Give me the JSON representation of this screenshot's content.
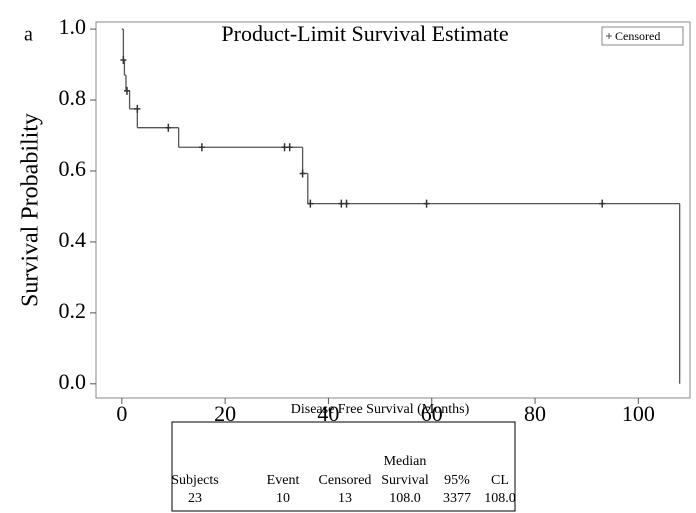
{
  "panel_label": "a",
  "chart_data": {
    "type": "survival-step",
    "title": "Product-Limit Survival Estimate",
    "x_label": "Disease Free Survival (Months)",
    "y_label": "Survival Probability",
    "xlim": [
      -5,
      110
    ],
    "ylim": [
      -0.04,
      1.02
    ],
    "xticks": [
      0,
      20,
      40,
      60,
      80,
      100
    ],
    "yticks": [
      {
        "value": 0,
        "label": "0.0"
      },
      {
        "value": 0.2,
        "label": "0.2"
      },
      {
        "value": 0.4,
        "label": "0.4"
      },
      {
        "value": 0.6,
        "label": "0.6"
      },
      {
        "value": 0.8,
        "label": "0.8"
      },
      {
        "value": 1,
        "label": "1.0"
      }
    ],
    "color": "#555555",
    "legend": "top-right",
    "series": [
      {
        "x": [
          0,
          0.3,
          0.5,
          0.8,
          1.5,
          3,
          11,
          35,
          36,
          108
        ],
        "values": [
          1.0,
          0.913,
          0.87,
          0.826,
          0.775,
          0.722,
          0.667,
          0.593,
          0.508,
          0.0
        ]
      },
      {
        "name": "Censored",
        "x": [
          0.3,
          1,
          3,
          9,
          15.5,
          31.5,
          32.5,
          35,
          36.5,
          42.5,
          43.5,
          59,
          93
        ],
        "values": [
          0.913,
          0.826,
          0.775,
          0.722,
          0.667,
          0.667,
          0.667,
          0.593,
          0.508,
          0.508,
          0.508,
          0.508,
          0.508
        ]
      }
    ]
  },
  "table": {
    "header_line1": "Median",
    "header": [
      "Subjects",
      "Event",
      "Censored",
      "Survival",
      "95%",
      "CL"
    ],
    "row": [
      "23",
      "10",
      "13",
      "108.0",
      "3377",
      "108.0"
    ]
  }
}
